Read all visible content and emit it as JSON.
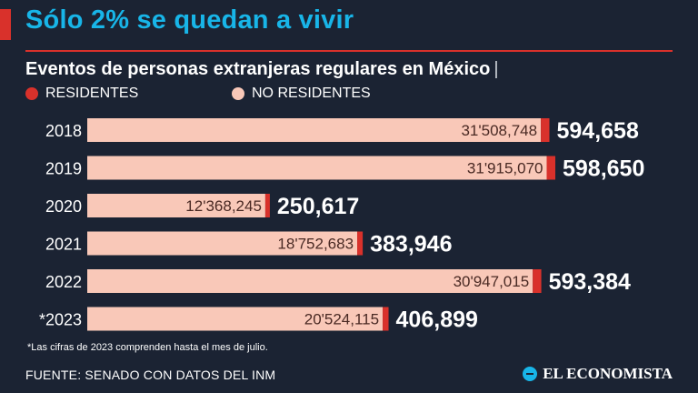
{
  "header": {
    "title": "Sólo 2% se quedan a vivir",
    "subtitle": "Eventos de personas extranjeras regulares en México",
    "subtitle_cursor": "|"
  },
  "legend": {
    "residentes": "RESIDENTES",
    "no_residentes": "NO RESIDENTES"
  },
  "colors": {
    "background": "#1b2333",
    "residentes": "#d9312b",
    "no_residentes": "#f9c8b8",
    "title": "#18b5e8"
  },
  "chart_data": {
    "type": "bar",
    "orientation": "horizontal",
    "stacked": true,
    "categories": [
      "2018",
      "2019",
      "2020",
      "2021",
      "2022",
      "*2023"
    ],
    "series": [
      {
        "name": "NO RESIDENTES",
        "values": [
          31508748,
          31915070,
          12368245,
          18752683,
          30947015,
          20524115
        ],
        "labels": [
          "31'508,748",
          "31'915,070",
          "12'368,245",
          "18'752,683",
          "30'947,015",
          "20'524,115"
        ]
      },
      {
        "name": "RESIDENTES",
        "values": [
          594658,
          598650,
          250617,
          383946,
          593384,
          406899
        ],
        "labels": [
          "594,658",
          "598,650",
          "250,617",
          "383,946",
          "593,384",
          "406,899"
        ]
      }
    ],
    "title": "Eventos de personas extranjeras regulares en México",
    "xlabel": "",
    "ylabel": "",
    "xlim": [
      0,
      32513720
    ]
  },
  "footnote": "*Las cifras de 2023 comprenden hasta el mes de julio.",
  "source": "FUENTE: SENADO CON DATOS DEL INM",
  "brand": "EL ECONOMISTA"
}
